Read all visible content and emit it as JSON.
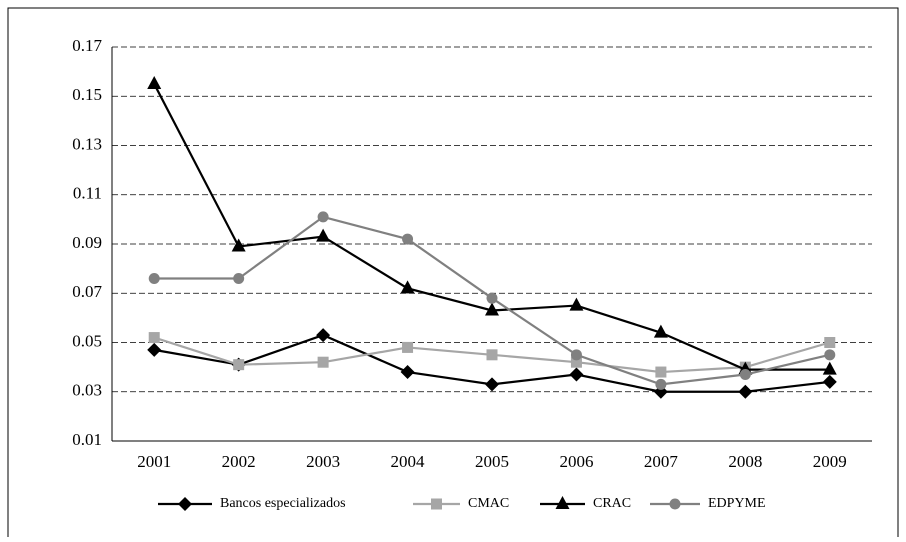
{
  "chart_data": {
    "type": "line",
    "categories": [
      "2001",
      "2002",
      "2003",
      "2004",
      "2005",
      "2006",
      "2007",
      "2008",
      "2009"
    ],
    "series": [
      {
        "name": "Bancos especializados",
        "color": "#000000",
        "marker": "diamond",
        "values": [
          0.047,
          0.041,
          0.053,
          0.038,
          0.033,
          0.037,
          0.03,
          0.03,
          0.034
        ]
      },
      {
        "name": "CMAC",
        "color": "#a6a6a6",
        "marker": "square",
        "values": [
          0.052,
          0.041,
          0.042,
          0.048,
          0.045,
          0.042,
          0.038,
          0.04,
          0.05
        ]
      },
      {
        "name": "CRAC",
        "color": "#000000",
        "marker": "triangle",
        "values": [
          0.155,
          0.089,
          0.093,
          0.072,
          0.063,
          0.065,
          0.054,
          0.039,
          0.039
        ]
      },
      {
        "name": "EDPYME",
        "color": "#808080",
        "marker": "circle",
        "values": [
          0.076,
          0.076,
          0.101,
          0.092,
          0.068,
          0.045,
          0.033,
          0.037,
          0.045
        ]
      }
    ],
    "ylim": [
      0.01,
      0.17
    ],
    "yticks": [
      0.01,
      0.03,
      0.05,
      0.07,
      0.09,
      0.11,
      0.13,
      0.15,
      0.17
    ],
    "grid": true,
    "legend": "bottom"
  }
}
